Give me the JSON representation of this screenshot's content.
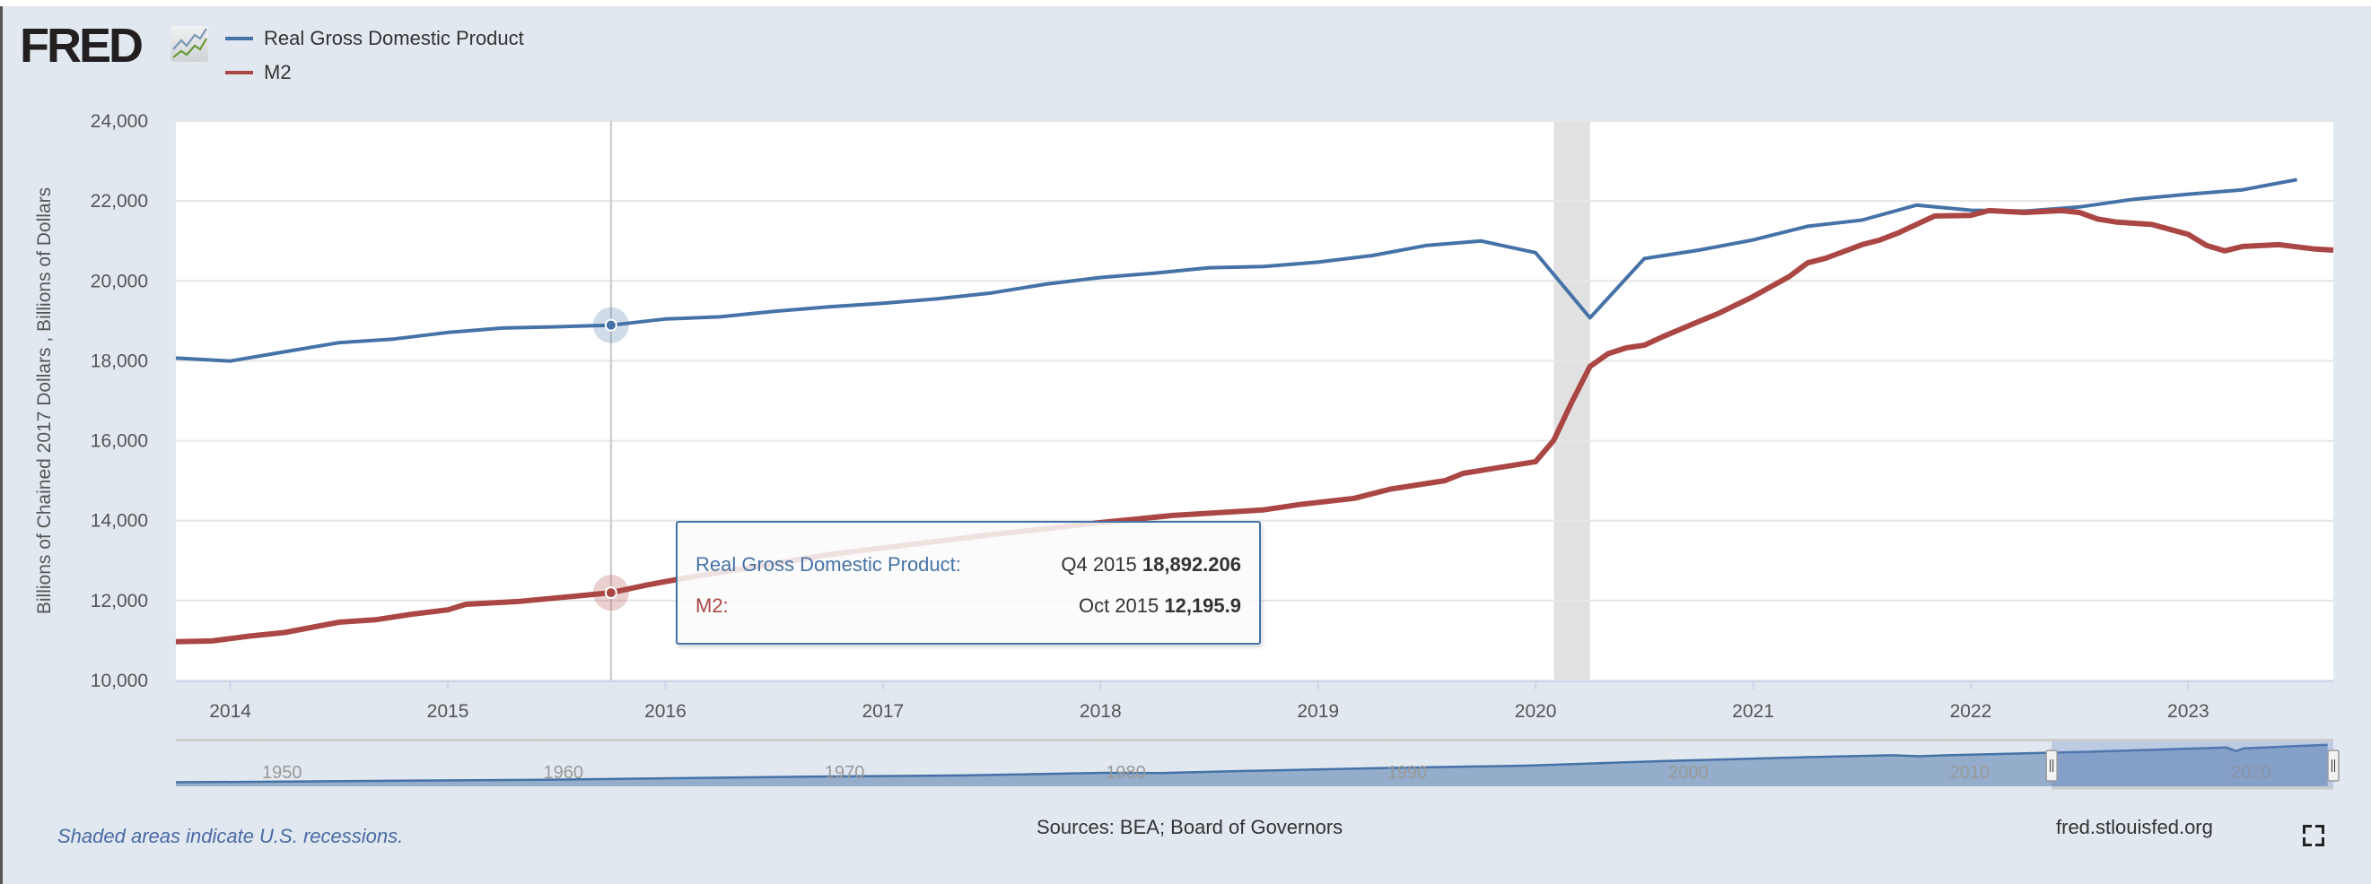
{
  "header": {
    "logo_text": "FRED",
    "legend": [
      {
        "label": "Real Gross Domestic Product",
        "color": "#4572a7"
      },
      {
        "label": "M2",
        "color": "#aa4643"
      }
    ]
  },
  "chart_data": {
    "type": "line",
    "ylabel": "Billions of Chained 2017 Dollars , Billions of Dollars",
    "ylim": [
      10000,
      24000
    ],
    "yticks": [
      "10,000",
      "12,000",
      "14,000",
      "16,000",
      "18,000",
      "20,000",
      "22,000",
      "24,000"
    ],
    "ytick_values": [
      10000,
      12000,
      14000,
      16000,
      18000,
      20000,
      22000,
      24000
    ],
    "xlim": [
      "2013-10",
      "2023-09"
    ],
    "xticks": [
      "2014",
      "2015",
      "2016",
      "2017",
      "2018",
      "2019",
      "2020",
      "2021",
      "2022",
      "2023"
    ],
    "grid": true,
    "legend_position": "top-left",
    "recessions": [
      {
        "start": "2020-02",
        "end": "2020-04"
      }
    ],
    "recession_color": "#e1e1e1",
    "series": [
      {
        "name": "Real Gross Domestic Product",
        "color": "#4572a7",
        "frequency": "quarterly",
        "x": [
          "2013-10",
          "2014-01",
          "2014-04",
          "2014-07",
          "2014-10",
          "2015-01",
          "2015-04",
          "2015-07",
          "2015-10",
          "2016-01",
          "2016-04",
          "2016-07",
          "2016-10",
          "2017-01",
          "2017-04",
          "2017-07",
          "2017-10",
          "2018-01",
          "2018-04",
          "2018-07",
          "2018-10",
          "2019-01",
          "2019-04",
          "2019-07",
          "2019-10",
          "2020-01",
          "2020-04",
          "2020-07",
          "2020-10",
          "2021-01",
          "2021-04",
          "2021-07",
          "2021-10",
          "2022-01",
          "2022-04",
          "2022-07",
          "2022-10",
          "2023-01",
          "2023-04",
          "2023-07"
        ],
        "values": [
          18067,
          17994,
          18225,
          18454,
          18544,
          18710,
          18820,
          18850,
          18892.206,
          19047,
          19101,
          19240,
          19350,
          19440,
          19550,
          19700,
          19920,
          20084,
          20194,
          20330,
          20358,
          20468,
          20634,
          20888,
          20998,
          20706,
          19075,
          20558,
          20770,
          21025,
          21366,
          21521,
          21896,
          21768,
          21745,
          21850,
          22043,
          22170,
          22280,
          22536
        ]
      },
      {
        "name": "M2",
        "color": "#aa4643",
        "frequency": "monthly",
        "x": [
          "2013-10",
          "2013-12",
          "2014-02",
          "2014-04",
          "2014-07",
          "2014-09",
          "2014-11",
          "2015-01",
          "2015-02",
          "2015-05",
          "2015-10",
          "2015-12",
          "2016-02",
          "2016-06",
          "2016-10",
          "2017-03",
          "2017-07",
          "2017-11",
          "2018-01",
          "2018-05",
          "2018-10",
          "2018-12",
          "2019-03",
          "2019-05",
          "2019-08",
          "2019-09",
          "2020-01",
          "2020-02",
          "2020-03",
          "2020-04",
          "2020-05",
          "2020-06",
          "2020-07",
          "2020-08",
          "2020-10",
          "2020-11",
          "2021-01",
          "2021-03",
          "2021-04",
          "2021-05",
          "2021-07",
          "2021-08",
          "2021-09",
          "2021-11",
          "2022-01",
          "2022-02",
          "2022-04",
          "2022-06",
          "2022-07",
          "2022-08",
          "2022-09",
          "2022-11",
          "2023-01",
          "2023-02",
          "2023-03",
          "2023-04",
          "2023-06",
          "2023-08",
          "2023-09"
        ],
        "values": [
          10971,
          10990,
          11108,
          11200,
          11458,
          11520,
          11658,
          11767,
          11907,
          11980,
          12195.9,
          12392,
          12557,
          12850,
          13150,
          13430,
          13650,
          13850,
          13950,
          14130,
          14270,
          14404,
          14560,
          14790,
          15000,
          15183,
          15476,
          16008,
          16968,
          17857,
          18178,
          18324,
          18390,
          18600,
          18984,
          19167,
          19607,
          20110,
          20450,
          20567,
          20906,
          21025,
          21200,
          21622,
          21640,
          21758,
          21712,
          21758,
          21712,
          21548,
          21474,
          21411,
          21164,
          20888,
          20751,
          20861,
          20906,
          20796,
          20770
        ]
      }
    ],
    "crosshair": {
      "date": "2015-10"
    },
    "tooltip": {
      "rows": [
        {
          "label": "Real Gross Domestic Product:",
          "period": "Q4 2015",
          "value": "18,892.206",
          "color": "#4572a7"
        },
        {
          "label": "M2:",
          "period": "Oct 2015",
          "value": "12,195.9",
          "color": "#aa4643"
        }
      ]
    },
    "navigator": {
      "xticks": [
        "1950",
        "1960",
        "1970",
        "1980",
        "1990",
        "2000",
        "2010",
        "2020"
      ],
      "xlim": [
        1947,
        2023.7
      ],
      "ylim": [
        0,
        24300
      ],
      "x": [
        1947,
        1950,
        1955,
        1960,
        1965,
        1970,
        1975,
        1980,
        1982,
        1985,
        1990,
        1995,
        2000,
        2005,
        2008,
        2009,
        2010,
        2015,
        2019.9,
        2020.25,
        2020.5,
        2023.5
      ],
      "values": [
        2200,
        2450,
        3000,
        3500,
        4400,
        5300,
        5900,
        7300,
        7200,
        8300,
        9900,
        11200,
        13700,
        15800,
        16800,
        16300,
        16800,
        18700,
        21000,
        19075,
        20500,
        22500
      ],
      "selection": [
        "2013-10",
        "2023-09"
      ]
    }
  },
  "footer": {
    "note": "Shaded areas indicate U.S. recessions.",
    "sources": "Sources: BEA; Board of Governors",
    "url": "fred.stlouisfed.org"
  }
}
